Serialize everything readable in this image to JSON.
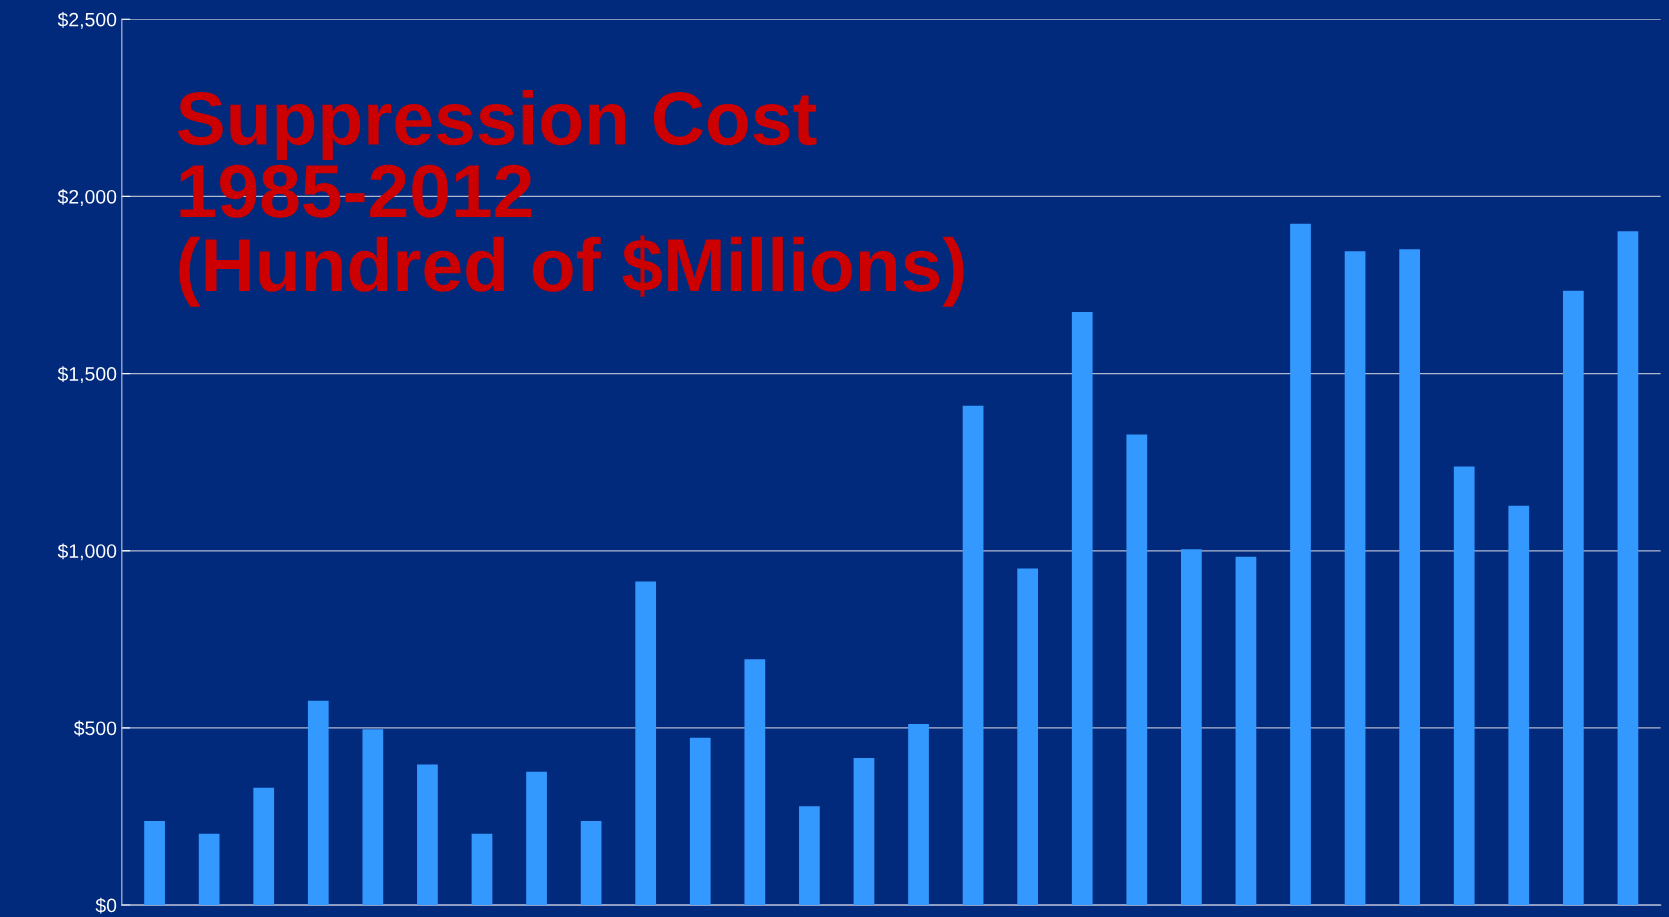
{
  "chart_data": {
    "type": "bar",
    "title": "Suppression Cost\n1985-2012\n(Hundred of $Millions)",
    "categories": [
      null,
      null,
      null,
      null,
      null,
      null,
      null,
      null,
      null,
      null,
      null,
      null,
      null,
      null,
      null,
      null,
      null,
      null,
      null,
      null,
      null,
      null,
      null,
      null,
      null,
      null,
      null,
      null
    ],
    "values": [
      237,
      201,
      331,
      577,
      496,
      397,
      201,
      376,
      237,
      913,
      472,
      694,
      279,
      415,
      511,
      1409,
      950,
      1674,
      1328,
      1004,
      983,
      1923,
      1845,
      1851,
      1238,
      1127,
      1734,
      1902
    ],
    "color": "#3399ff",
    "ylim": [
      0,
      2500
    ],
    "yticks": [
      {
        "value": 0,
        "label": "$0"
      },
      {
        "value": 500,
        "label": "$500"
      },
      {
        "value": 1000,
        "label": "$1,000"
      },
      {
        "value": 1500,
        "label": "$1,500"
      },
      {
        "value": 2000,
        "label": "$2,000"
      },
      {
        "value": 2500,
        "label": "$2,500"
      }
    ],
    "grid": "y"
  }
}
